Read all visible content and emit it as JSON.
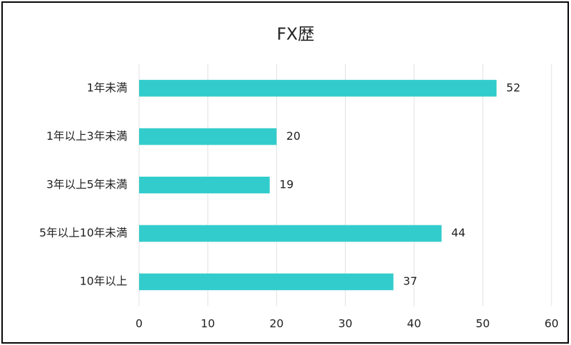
{
  "chart_data": {
    "type": "bar",
    "orientation": "horizontal",
    "title": "FX歴",
    "categories": [
      "1年未満",
      "1年以上3年未満",
      "3年以上5年未満",
      "5年以上10年未満",
      "10年以上"
    ],
    "values": [
      52,
      20,
      19,
      44,
      37
    ],
    "color": "#33cccc",
    "xlim": [
      0,
      60
    ],
    "xticks": [
      0,
      10,
      20,
      30,
      40,
      50,
      60
    ],
    "grid": true
  }
}
